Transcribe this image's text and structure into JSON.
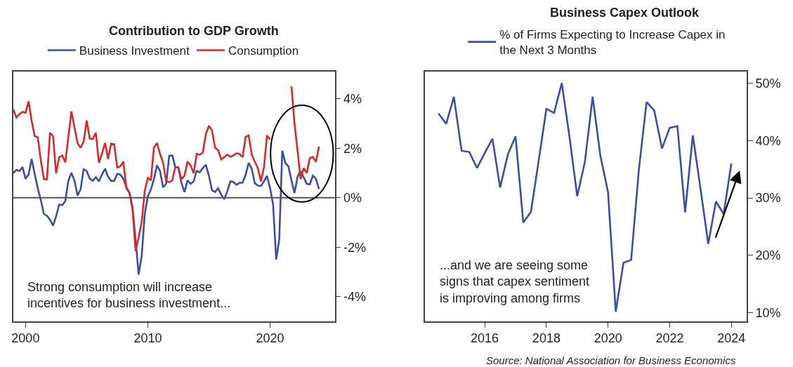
{
  "chart_data": [
    {
      "type": "line",
      "title": "Contribution to GDP Growth",
      "x": [
        1999,
        1999.25,
        1999.5,
        1999.75,
        2000,
        2000.25,
        2000.5,
        2000.75,
        2001,
        2001.25,
        2001.5,
        2001.75,
        2002,
        2002.25,
        2002.5,
        2002.75,
        2003,
        2003.25,
        2003.5,
        2003.75,
        2004,
        2004.25,
        2004.5,
        2004.75,
        2005,
        2005.25,
        2005.5,
        2005.75,
        2006,
        2006.25,
        2006.5,
        2006.75,
        2007,
        2007.25,
        2007.5,
        2007.75,
        2008,
        2008.25,
        2008.5,
        2008.75,
        2009,
        2009.25,
        2009.5,
        2009.75,
        2010,
        2010.25,
        2010.5,
        2010.75,
        2011,
        2011.25,
        2011.5,
        2011.75,
        2012,
        2012.25,
        2012.5,
        2012.75,
        2013,
        2013.25,
        2013.5,
        2013.75,
        2014,
        2014.25,
        2014.5,
        2014.75,
        2015,
        2015.25,
        2015.5,
        2015.75,
        2016,
        2016.25,
        2016.5,
        2016.75,
        2017,
        2017.25,
        2017.5,
        2017.75,
        2018,
        2018.25,
        2018.5,
        2018.75,
        2019,
        2019.25,
        2019.5,
        2019.75,
        2020,
        2020.25,
        2020.5,
        2020.75,
        2021,
        2021.25,
        2021.5,
        2021.75,
        2022,
        2022.25,
        2022.5,
        2022.75,
        2023,
        2023.25,
        2023.5,
        2023.75,
        2024
      ],
      "series": [
        {
          "name": "Business Investment",
          "color": "#3b4ea6",
          "values": [
            0.99,
            1.13,
            1.08,
            1.24,
            0.77,
            0.94,
            1.57,
            0.96,
            0.38,
            -0.09,
            -0.66,
            -0.73,
            -0.89,
            -1.13,
            -0.75,
            -0.28,
            -0.3,
            -0.14,
            0.68,
            1.01,
            0.7,
            0.09,
            0.33,
            1.15,
            1.08,
            0.77,
            0.68,
            0.83,
            0.66,
            0.94,
            1.17,
            0.85,
            0.68,
            0.68,
            0.96,
            0.94,
            0.77,
            0.42,
            0.19,
            -0.38,
            -1.69,
            -3.1,
            -2.35,
            -0.66,
            0.05,
            0.33,
            0.75,
            1.31,
            1.08,
            0.42,
            0.56,
            1.69,
            1.71,
            1.24,
            1.22,
            0.6,
            0.23,
            0.7,
            0.56,
            0.66,
            1.08,
            1.03,
            1.2,
            1.33,
            0.89,
            0.3,
            0.23,
            0.38,
            0.13,
            -0.06,
            0.26,
            0.66,
            0.64,
            0.52,
            0.6,
            0.61,
            0.92,
            1.41,
            1.17,
            0.59,
            0.49,
            0.47,
            0.66,
            0.88,
            0.39,
            -0.28,
            -2.5,
            -1.7,
            1.9,
            1.4,
            1.27,
            0.7,
            0.19,
            0.85,
            1.08,
            0.83,
            0.56,
            0.54,
            0.89,
            0.77,
            0.35
          ]
        },
        {
          "name": "Consumption",
          "color": "#d42a2e",
          "values": [
            3.57,
            3.24,
            3.38,
            3.47,
            3.43,
            3.9,
            3.1,
            2.49,
            2.44,
            1.5,
            0.75,
            0.75,
            2.63,
            2.49,
            0.99,
            1.64,
            1.71,
            1.43,
            2.44,
            3.49,
            2.86,
            2.21,
            2.02,
            2.27,
            3.12,
            2.39,
            2.38,
            2.63,
            1.41,
            1.78,
            2.21,
            1.57,
            2.19,
            2.16,
            1.22,
            1.27,
            1.46,
            0.38,
            0.19,
            -0.47,
            -2.16,
            -1.6,
            -0.99,
            0.28,
            0.8,
            0.7,
            2.02,
            2.21,
            1.78,
            1.41,
            0.68,
            0.63,
            0.7,
            1.24,
            1.22,
            0.75,
            0.89,
            1.46,
            1.31,
            0.99,
            1.77,
            1.74,
            1.83,
            2.58,
            2.91,
            2.72,
            2.02,
            1.92,
            1.55,
            1.64,
            1.74,
            1.66,
            1.71,
            1.8,
            1.77,
            1.64,
            2.46,
            2.52,
            1.74,
            1.46,
            1.2,
            0.66,
            1.22,
            2.52,
            2.35,
            null,
            null,
            null,
            null,
            null,
            null,
            4.5,
            3.0,
            1.9,
            0.75,
            1.2,
            1.0,
            1.6,
            1.65,
            1.45,
            2.07
          ]
        }
      ],
      "xlim": [
        1999,
        2025.3
      ],
      "xticks": [
        2000,
        2010,
        2020
      ],
      "ylim": [
        -5,
        5.1
      ],
      "yticks": [
        {
          "value": 4,
          "label": "4%"
        },
        {
          "value": 2,
          "label": "2%"
        },
        {
          "value": 0,
          "label": "0%"
        },
        {
          "value": -2,
          "label": "-2%"
        },
        {
          "value": -4,
          "label": "-4%"
        }
      ],
      "ref_lines": [
        {
          "axis": "y",
          "value": 0,
          "color": "#555555"
        }
      ],
      "annotations": [
        "Strong consumption will increase\nincentives for business investment..."
      ],
      "legend": "top",
      "marker": "none",
      "line_style": "solid"
    },
    {
      "type": "line",
      "title": "Business Capex Outlook",
      "x": [
        2014.5,
        2014.75,
        2015,
        2015.25,
        2015.5,
        2015.75,
        2016,
        2016.25,
        2016.5,
        2016.75,
        2017,
        2017.25,
        2017.5,
        2017.75,
        2018,
        2018.25,
        2018.5,
        2018.75,
        2019,
        2019.25,
        2019.5,
        2019.75,
        2020,
        2020.25,
        2020.5,
        2020.75,
        2021,
        2021.25,
        2021.5,
        2021.75,
        2022,
        2022.25,
        2022.5,
        2022.75,
        2023,
        2023.25,
        2023.5,
        2023.75,
        2024
      ],
      "series": [
        {
          "name": "% of Firms Expecting to Increase Capex in the Next 3 Months",
          "color": "#3b4ea6",
          "values": [
            44.7,
            42.9,
            47.6,
            38.2,
            38.0,
            35.2,
            37.8,
            40.3,
            31.8,
            37.6,
            40.7,
            25.7,
            27.6,
            36.5,
            45.5,
            44.8,
            50.0,
            40.6,
            30.3,
            36.3,
            47.6,
            37.4,
            31.0,
            10.2,
            18.7,
            19.2,
            34.9,
            46.7,
            45.2,
            38.6,
            42.2,
            42.5,
            27.5,
            40.9,
            31.6,
            22.0,
            29.4,
            27.2,
            36.0
          ]
        }
      ],
      "xlim": [
        2014.07,
        2024.5
      ],
      "xticks": [
        2016,
        2018,
        2020,
        2022,
        2024
      ],
      "ylim": [
        8.5,
        52
      ],
      "yticks": [
        {
          "value": 50,
          "label": "50%"
        },
        {
          "value": 40,
          "label": "40%"
        },
        {
          "value": 30,
          "label": "30%"
        },
        {
          "value": 20,
          "label": "20%"
        },
        {
          "value": 10,
          "label": "10%"
        }
      ],
      "annotations": [
        "...and we are seeing some\nsigns that capex sentiment\nis improving among firms",
        "Source: National Association for Business Economics"
      ],
      "legend": "top",
      "marker": "none",
      "line_style": "solid"
    }
  ]
}
